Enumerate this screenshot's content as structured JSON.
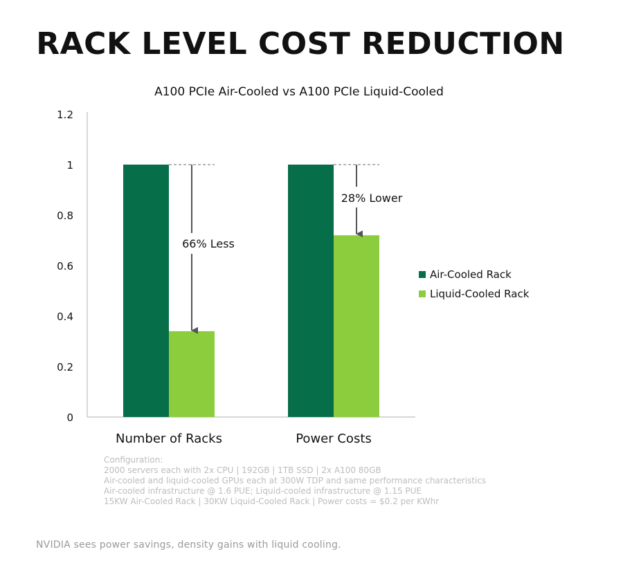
{
  "page": {
    "headline": "RACK LEVEL COST REDUCTION",
    "configuration": {
      "heading": "Configuration:",
      "lines": [
        "2000 servers each with 2x CPU | 192GB | 1TB SSD | 2x A100 80GB",
        "Air-cooled and liquid-cooled GPUs each at 300W TDP and same performance characteristics",
        "Air-cooled infrastructure @ 1.6 PUE; Liquid-cooled infrastructure @ 1.15 PUE",
        "15KW Air-Cooled Rack | 30KW Liquid-Cooled Rack | Power costs = $0.2 per KWhr"
      ]
    },
    "caption": "NVIDIA sees power savings, density gains with liquid cooling."
  },
  "chart_data": {
    "type": "bar",
    "title": "A100 PCIe Air-Cooled vs A100 PCIe Liquid-Cooled",
    "categories": [
      "Number of Racks",
      "Power Costs"
    ],
    "series": [
      {
        "name": "Air-Cooled Rack",
        "values": [
          1,
          1
        ],
        "color": "#076e4a"
      },
      {
        "name": "Liquid-Cooled Rack",
        "values": [
          0.34,
          0.72
        ],
        "color": "#8ccd3e"
      }
    ],
    "ylim": [
      0,
      1.2
    ],
    "yticks": [
      "0",
      "0.2",
      "0.4",
      "0.6",
      "0.8",
      "1",
      "1.2"
    ],
    "ytick_values": [
      0,
      0.2,
      0.4,
      0.6,
      0.8,
      1,
      1.2
    ],
    "xlabel": "",
    "ylabel": "",
    "grid": false,
    "legend": "right",
    "annotations": [
      {
        "category": 0,
        "from": 1,
        "to": 0.34,
        "label": "66% Less"
      },
      {
        "category": 1,
        "from": 1,
        "to": 0.72,
        "label": "28% Lower"
      }
    ]
  }
}
